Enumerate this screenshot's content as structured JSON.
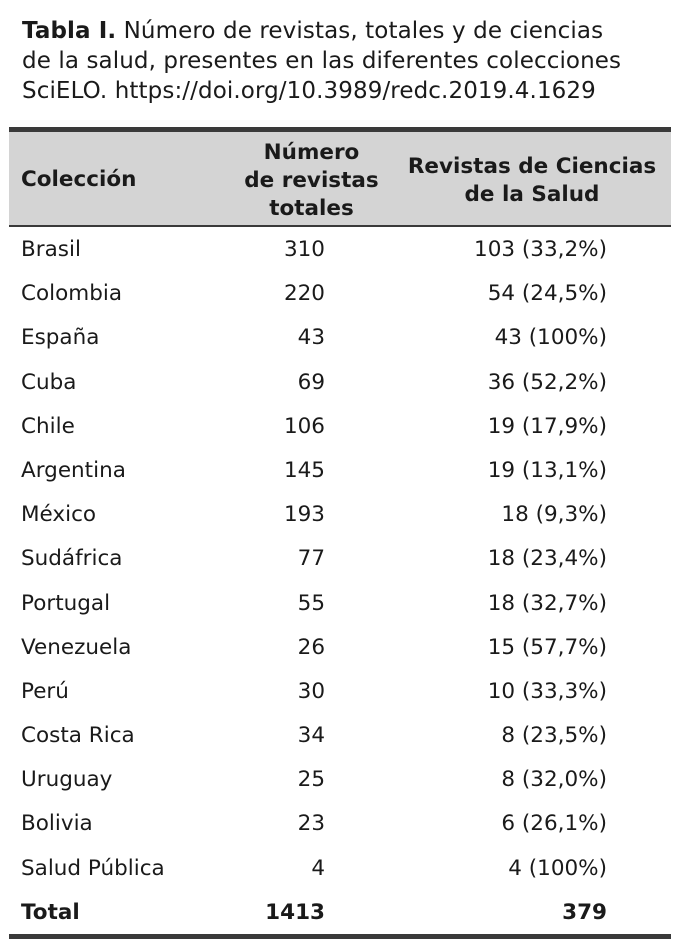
{
  "caption": {
    "label": "Tabla I.",
    "line1": " Número de revistas, totales y de ciencias",
    "line2": "de la salud, presentes en las diferentes colecciones",
    "line3": "SciELO. https://doi.org/10.3989/redc.2019.4.1629"
  },
  "table": {
    "headers": {
      "coleccion": "Colección",
      "numero": [
        "Número",
        "de revistas",
        "totales"
      ],
      "revistas": [
        "Revistas de Ciencias",
        "de la Salud"
      ]
    },
    "rows": [
      {
        "name": "Brasil",
        "total": "310",
        "salud": "103 (33,2%)"
      },
      {
        "name": "Colombia",
        "total": "220",
        "salud": "54 (24,5%)"
      },
      {
        "name": "España",
        "total": "43",
        "salud": "43 (100%)"
      },
      {
        "name": "Cuba",
        "total": "69",
        "salud": "36 (52,2%)"
      },
      {
        "name": "Chile",
        "total": "106",
        "salud": "19 (17,9%)"
      },
      {
        "name": "Argentina",
        "total": "145",
        "salud": "19 (13,1%)"
      },
      {
        "name": "México",
        "total": "193",
        "salud": "18 (9,3%)"
      },
      {
        "name": "Sudáfrica",
        "total": "77",
        "salud": "18 (23,4%)"
      },
      {
        "name": "Portugal",
        "total": "55",
        "salud": "18 (32,7%)"
      },
      {
        "name": "Venezuela",
        "total": "26",
        "salud": "15 (57,7%)"
      },
      {
        "name": "Perú",
        "total": "30",
        "salud": "10 (33,3%)"
      },
      {
        "name": "Costa Rica",
        "total": "34",
        "salud": "8 (23,5%)"
      },
      {
        "name": "Uruguay",
        "total": "25",
        "salud": "8 (32,0%)"
      },
      {
        "name": "Bolivia",
        "total": "23",
        "salud": "6 (26,1%)"
      },
      {
        "name": "Salud Pública",
        "total": "4",
        "salud": "4 (100%)"
      }
    ],
    "total_row": {
      "name": "Total",
      "total": "1413",
      "salud": "379"
    }
  }
}
